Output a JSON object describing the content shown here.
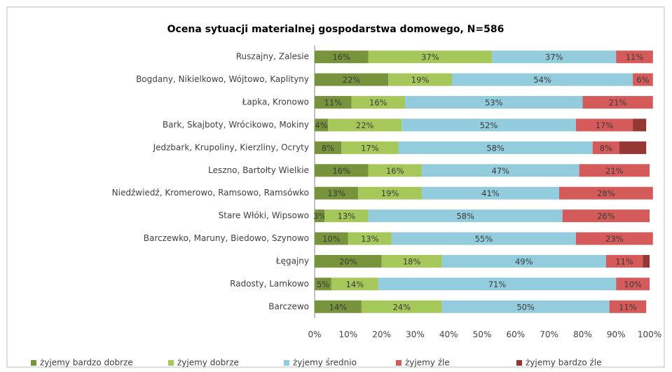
{
  "chart_data": {
    "type": "stacked-bar-horizontal",
    "title": "Ocena sytuacji materialnej gospodarstwa domowego, N=586",
    "categories": [
      "Ruszajny, Zalesie",
      "Bogdany, Nikielkowo, Wójtowo, Kaplityny",
      "Łapka, Kronowo",
      "Bark, Skajboty, Wrócikowo, Mokiny",
      "Jedzbark, Krupoliny, Kierzliny, Ocryty",
      "Leszno, Bartołty Wielkie",
      "Niedźwiedź, Kromerowo, Ramsowo, Ramsówko",
      "Stare Włóki, Wipsowo",
      "Barczewko, Maruny, Biedowo, Szynowo",
      "Łęgajny",
      "Radosty, Lamkowo",
      "Barczewo"
    ],
    "series": [
      {
        "name": "żyjemy bardzo dobrze",
        "color": "#77933c",
        "values": [
          16,
          22,
          11,
          4,
          8,
          16,
          13,
          3,
          10,
          20,
          5,
          14
        ],
        "value_labels": [
          "16%",
          "22%",
          "11%",
          "4%",
          "8%",
          "16%",
          "13%",
          "3%",
          "10%",
          "20%",
          "5%",
          "14%"
        ]
      },
      {
        "name": "żyjemy dobrze",
        "color": "#a6c85a",
        "values": [
          37,
          19,
          16,
          22,
          17,
          16,
          19,
          13,
          13,
          18,
          14,
          24
        ],
        "value_labels": [
          "37%",
          "19%",
          "16%",
          "22%",
          "17%",
          "16%",
          "19%",
          "13%",
          "13%",
          "18%",
          "14%",
          "24%"
        ]
      },
      {
        "name": "żyjemy średnio",
        "color": "#93cddd",
        "values": [
          37,
          54,
          53,
          52,
          58,
          47,
          41,
          58,
          55,
          49,
          71,
          50
        ],
        "value_labels": [
          "37%",
          "54%",
          "53%",
          "52%",
          "58%",
          "47%",
          "41%",
          "58%",
          "55%",
          "49%",
          "71%",
          "50%"
        ]
      },
      {
        "name": "żyjemy źle",
        "color": "#d55a5a",
        "values": [
          11,
          6,
          21,
          17,
          8,
          21,
          28,
          26,
          23,
          11,
          10,
          11
        ],
        "value_labels": [
          "11%",
          "6%",
          "21%",
          "17%",
          "8%",
          "21%",
          "28%",
          "26%",
          "23%",
          "11%",
          "10%",
          "11%"
        ]
      },
      {
        "name": "żyjemy bardzo źle",
        "color": "#953735",
        "values": [
          0,
          0,
          0,
          4,
          8,
          0,
          0,
          0,
          0,
          2,
          0,
          0
        ],
        "value_labels": [
          null,
          null,
          null,
          null,
          null,
          null,
          null,
          null,
          null,
          null,
          null,
          null
        ]
      }
    ],
    "xlim": [
      0,
      100
    ],
    "xticks": [
      {
        "value": 0,
        "label": "0%"
      },
      {
        "value": 10,
        "label": "10%"
      },
      {
        "value": 20,
        "label": "20%"
      },
      {
        "value": 30,
        "label": "30%"
      },
      {
        "value": 40,
        "label": "40%"
      },
      {
        "value": 50,
        "label": "50%"
      },
      {
        "value": 60,
        "label": "60%"
      },
      {
        "value": 70,
        "label": "70%"
      },
      {
        "value": 80,
        "label": "80%"
      },
      {
        "value": 90,
        "label": "90%"
      },
      {
        "value": 100,
        "label": "100%"
      }
    ],
    "legend": "bottom"
  }
}
